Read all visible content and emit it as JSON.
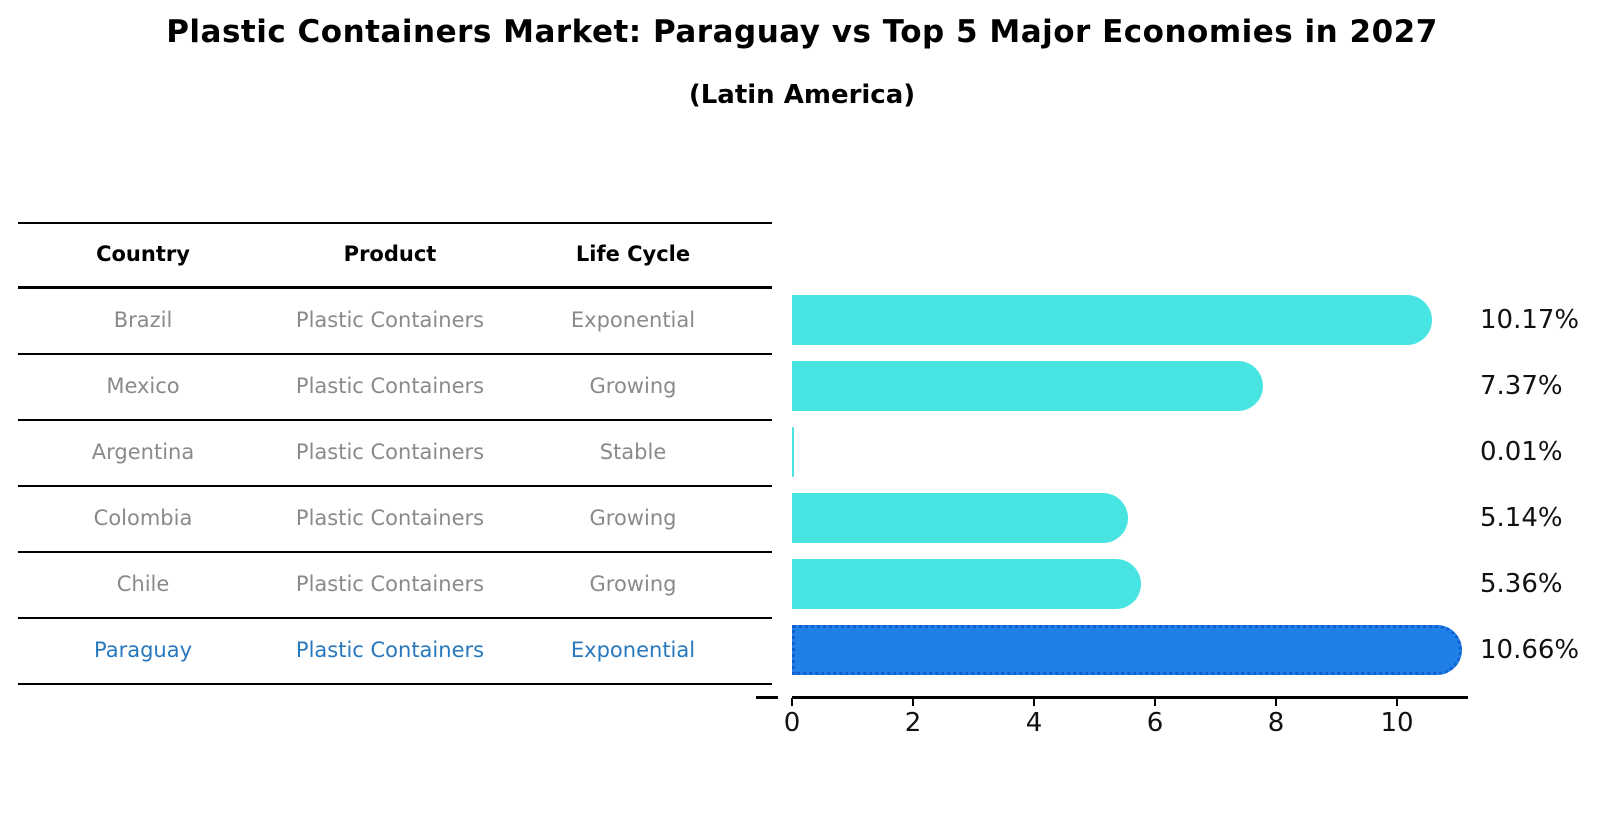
{
  "title": "Plastic Containers Market: Paraguay vs Top 5 Major Economies in 2027",
  "subtitle": "(Latin America)",
  "table": {
    "headers": [
      "Country",
      "Product",
      "Life Cycle"
    ],
    "rows": [
      {
        "country": "Brazil",
        "product": "Plastic Containers",
        "life_cycle": "Exponential",
        "highlight": false
      },
      {
        "country": "Mexico",
        "product": "Plastic Containers",
        "life_cycle": "Growing",
        "highlight": false
      },
      {
        "country": "Argentina",
        "product": "Plastic Containers",
        "life_cycle": "Stable",
        "highlight": false
      },
      {
        "country": "Colombia",
        "product": "Plastic Containers",
        "life_cycle": "Growing",
        "highlight": false
      },
      {
        "country": "Chile",
        "product": "Plastic Containers",
        "life_cycle": "Growing",
        "highlight": false
      },
      {
        "country": "Paraguay",
        "product": "Plastic Containers",
        "life_cycle": "Exponential",
        "highlight": true
      }
    ]
  },
  "chart_data": {
    "type": "bar",
    "orientation": "horizontal",
    "title": "Plastic Containers Market: Paraguay vs Top 5 Major Economies in 2027 (Latin America)",
    "categories": [
      "Brazil",
      "Mexico",
      "Argentina",
      "Colombia",
      "Chile",
      "Paraguay"
    ],
    "values": [
      10.17,
      7.37,
      0.01,
      5.14,
      5.36,
      10.66
    ],
    "value_labels": [
      "10.17%",
      "7.37%",
      "0.01%",
      "5.14%",
      "5.36%",
      "10.66%"
    ],
    "highlight_category": "Paraguay",
    "x_ticks": [
      0,
      2,
      4,
      6,
      8,
      10
    ],
    "xlim": [
      0,
      11.17
    ],
    "grid": false,
    "legend": "none",
    "bar_color": "#48E4E2",
    "highlight_color": "#1E80E8",
    "highlight_border_color": "#1260CF"
  },
  "colors": {
    "body_text": "#8A8A8A",
    "highlight_text": "#2878BE",
    "line": "#000000"
  }
}
